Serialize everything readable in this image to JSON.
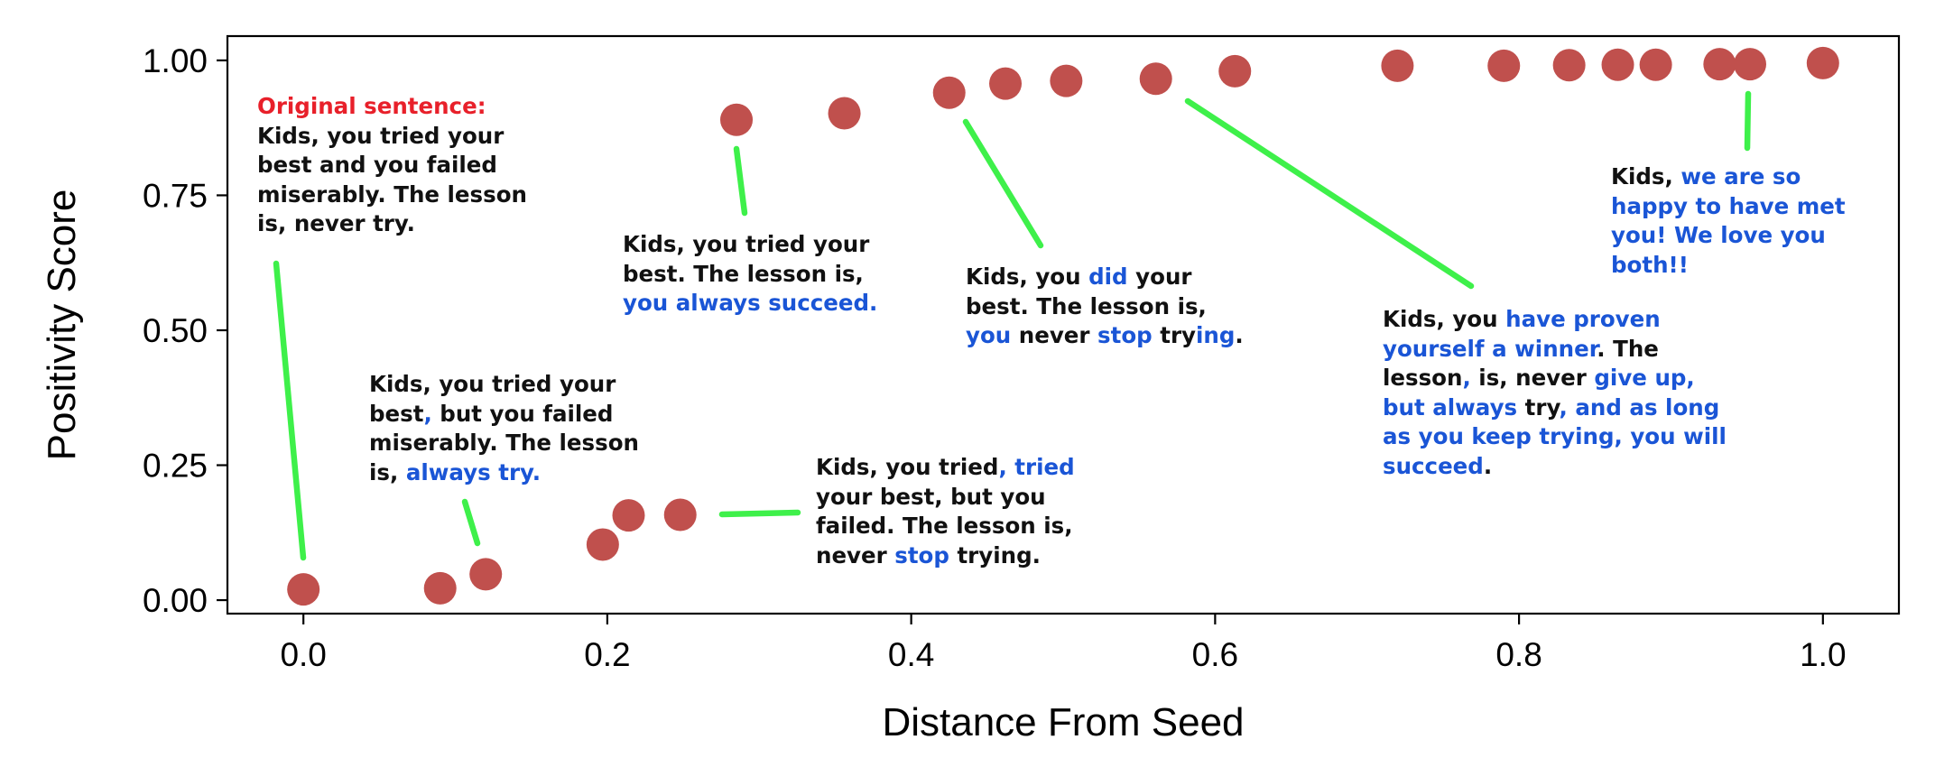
{
  "chart_data": {
    "type": "scatter",
    "xlabel": "Distance From Seed",
    "ylabel": "Positivity Score",
    "xlim": [
      -0.05,
      1.05
    ],
    "ylim": [
      -0.025,
      1.045
    ],
    "xticks": [
      "0.0",
      "0.2",
      "0.4",
      "0.6",
      "0.8",
      "1.0"
    ],
    "yticks": [
      "0.00",
      "0.25",
      "0.50",
      "0.75",
      "1.00"
    ],
    "grid": false,
    "point_color": "#c0504d",
    "connector_color": "#3ef04a",
    "highlight_color": "#1a55d6",
    "points": [
      {
        "x": 0.0,
        "y": 0.02
      },
      {
        "x": 0.09,
        "y": 0.022
      },
      {
        "x": 0.12,
        "y": 0.048
      },
      {
        "x": 0.197,
        "y": 0.103
      },
      {
        "x": 0.214,
        "y": 0.157
      },
      {
        "x": 0.248,
        "y": 0.158
      },
      {
        "x": 0.285,
        "y": 0.89
      },
      {
        "x": 0.356,
        "y": 0.902
      },
      {
        "x": 0.425,
        "y": 0.94
      },
      {
        "x": 0.462,
        "y": 0.957
      },
      {
        "x": 0.502,
        "y": 0.962
      },
      {
        "x": 0.561,
        "y": 0.966
      },
      {
        "x": 0.613,
        "y": 0.98
      },
      {
        "x": 0.72,
        "y": 0.99
      },
      {
        "x": 0.79,
        "y": 0.99
      },
      {
        "x": 0.833,
        "y": 0.991
      },
      {
        "x": 0.865,
        "y": 0.992
      },
      {
        "x": 0.89,
        "y": 0.992
      },
      {
        "x": 0.932,
        "y": 0.993
      },
      {
        "x": 0.952,
        "y": 0.993
      },
      {
        "x": 1.0,
        "y": 0.995
      }
    ],
    "annotations": [
      {
        "id": "original",
        "lines": [
          [
            {
              "t": "Original sentence:",
              "s": "red"
            }
          ],
          [
            {
              "t": "Kids, you tried your"
            }
          ],
          [
            {
              "t": "best and you failed"
            }
          ],
          [
            {
              "t": "miserably. The lesson"
            }
          ],
          [
            {
              "t": "is, never try."
            }
          ]
        ]
      },
      {
        "id": "always-try",
        "lines": [
          [
            {
              "t": "Kids, you tried your"
            }
          ],
          [
            {
              "t": "best"
            },
            {
              "t": ",",
              "s": "hl"
            },
            {
              "t": " but you failed"
            }
          ],
          [
            {
              "t": "miserably. The lesson"
            }
          ],
          [
            {
              "t": "is, "
            },
            {
              "t": "always try.",
              "s": "hl"
            }
          ]
        ]
      },
      {
        "id": "never-stop",
        "lines": [
          [
            {
              "t": "Kids, you tried"
            },
            {
              "t": ", tried",
              "s": "hl"
            }
          ],
          [
            {
              "t": "your best, but you"
            }
          ],
          [
            {
              "t": "failed. The lesson is,"
            }
          ],
          [
            {
              "t": "never "
            },
            {
              "t": "stop",
              "s": "hl"
            },
            {
              "t": " trying."
            }
          ]
        ]
      },
      {
        "id": "always-succeed",
        "lines": [
          [
            {
              "t": "Kids, you tried your"
            }
          ],
          [
            {
              "t": "best. The lesson is,"
            }
          ],
          [
            {
              "t": "you always succeed.",
              "s": "hl"
            }
          ]
        ]
      },
      {
        "id": "did-your-best",
        "lines": [
          [
            {
              "t": "Kids, you "
            },
            {
              "t": "did",
              "s": "hl"
            },
            {
              "t": " your"
            }
          ],
          [
            {
              "t": "best. The lesson is,"
            }
          ],
          [
            {
              "t": "you",
              "s": "hl"
            },
            {
              "t": " never "
            },
            {
              "t": "stop",
              "s": "hl"
            },
            {
              "t": " try"
            },
            {
              "t": "ing",
              "s": "hl"
            },
            {
              "t": "."
            }
          ]
        ]
      },
      {
        "id": "proven-winner",
        "lines": [
          [
            {
              "t": "Kids, you "
            },
            {
              "t": "have proven",
              "s": "hl"
            }
          ],
          [
            {
              "t": "yourself a winner",
              "s": "hl"
            },
            {
              "t": ". The"
            }
          ],
          [
            {
              "t": "lesson"
            },
            {
              "t": ",",
              "s": "hl"
            },
            {
              "t": " is, never "
            },
            {
              "t": "give up,",
              "s": "hl"
            }
          ],
          [
            {
              "t": "but always",
              "s": "hl"
            },
            {
              "t": " try"
            },
            {
              "t": ", and as long",
              "s": "hl"
            }
          ],
          [
            {
              "t": "as you keep trying, you will",
              "s": "hl"
            }
          ],
          [
            {
              "t": "succeed",
              "s": "hl"
            },
            {
              "t": "."
            }
          ]
        ]
      },
      {
        "id": "happy",
        "lines": [
          [
            {
              "t": "Kids, "
            },
            {
              "t": "we are so",
              "s": "hl"
            }
          ],
          [
            {
              "t": "happy to have met",
              "s": "hl"
            }
          ],
          [
            {
              "t": "you! We love you",
              "s": "hl"
            }
          ],
          [
            {
              "t": "both!!",
              "s": "hl"
            }
          ]
        ]
      }
    ]
  }
}
